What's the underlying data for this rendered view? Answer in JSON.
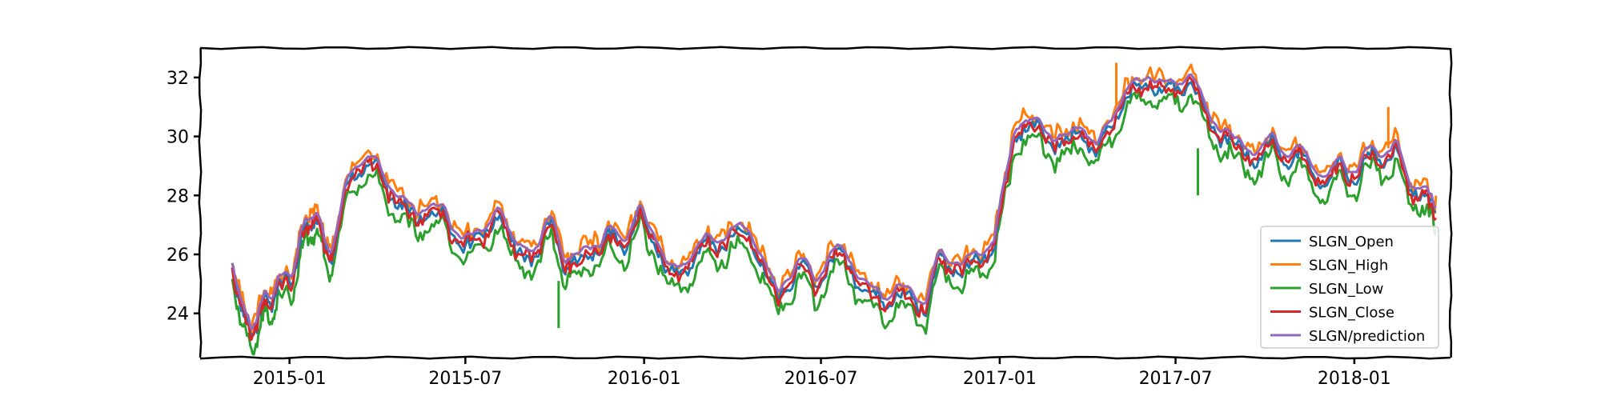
{
  "chart_data": {
    "type": "line",
    "title": "",
    "xlabel": "",
    "ylabel": "",
    "xlim": [
      "2014-10-01",
      "2018-04-10"
    ],
    "ylim": [
      22.5,
      33.0
    ],
    "x_ticks": [
      "2015-01",
      "2015-07",
      "2016-01",
      "2016-07",
      "2017-01",
      "2017-07",
      "2018-01"
    ],
    "y_ticks": [
      24,
      26,
      28,
      30,
      32
    ],
    "grid": false,
    "legend": {
      "placement": "lower-right",
      "entries": [
        "SLGN_Open",
        "SLGN_High",
        "SLGN_Low",
        "SLGN_Close",
        "SLGN/prediction"
      ]
    },
    "colors": {
      "SLGN_Open": "#1f77b4",
      "SLGN_High": "#ff7f0e",
      "SLGN_Low": "#2ca02c",
      "SLGN_Close": "#d62728",
      "SLGN/prediction": "#9467bd"
    },
    "base_series": {
      "x": [
        "2014-11-03",
        "2014-11-10",
        "2014-11-17",
        "2014-11-24",
        "2014-12-01",
        "2014-12-08",
        "2014-12-15",
        "2014-12-22",
        "2015-01-05",
        "2015-01-12",
        "2015-01-19",
        "2015-01-26",
        "2015-02-02",
        "2015-02-09",
        "2015-02-16",
        "2015-03-02",
        "2015-03-16",
        "2015-03-30",
        "2015-04-13",
        "2015-04-27",
        "2015-05-11",
        "2015-05-25",
        "2015-06-08",
        "2015-06-22",
        "2015-07-06",
        "2015-07-20",
        "2015-08-03",
        "2015-08-17",
        "2015-08-31",
        "2015-09-14",
        "2015-09-28",
        "2015-10-12",
        "2015-10-19",
        "2015-11-02",
        "2015-11-16",
        "2015-11-30",
        "2015-12-14",
        "2015-12-28",
        "2016-01-11",
        "2016-01-25",
        "2016-02-08",
        "2016-02-22",
        "2016-03-07",
        "2016-03-21",
        "2016-04-04",
        "2016-04-18",
        "2016-05-02",
        "2016-05-16",
        "2016-05-30",
        "2016-06-13",
        "2016-06-27",
        "2016-07-11",
        "2016-07-25",
        "2016-08-08",
        "2016-08-22",
        "2016-09-05",
        "2016-09-19",
        "2016-10-03",
        "2016-10-17",
        "2016-10-31",
        "2016-11-14",
        "2016-11-28",
        "2016-12-12",
        "2016-12-26",
        "2017-01-02",
        "2017-01-16",
        "2017-01-30",
        "2017-02-13",
        "2017-02-27",
        "2017-03-13",
        "2017-03-27",
        "2017-04-10",
        "2017-04-24",
        "2017-05-08",
        "2017-05-22",
        "2017-06-05",
        "2017-06-19",
        "2017-07-03",
        "2017-07-17",
        "2017-07-31",
        "2017-08-14",
        "2017-08-28",
        "2017-09-11",
        "2017-09-25",
        "2017-10-09",
        "2017-10-23",
        "2017-11-06",
        "2017-11-20",
        "2017-12-04",
        "2017-12-18",
        "2018-01-01",
        "2018-01-15",
        "2018-01-29",
        "2018-02-12",
        "2018-02-26",
        "2018-03-12",
        "2018-03-19",
        "2018-03-26"
      ],
      "close": [
        25.5,
        24.6,
        23.6,
        23.3,
        23.8,
        24.5,
        24.4,
        24.9,
        25.2,
        26.4,
        26.9,
        27.2,
        26.8,
        26.1,
        25.9,
        28.6,
        28.9,
        29.0,
        28.2,
        27.5,
        27.2,
        27.4,
        27.3,
        26.6,
        26.3,
        26.6,
        27.5,
        26.3,
        26.1,
        25.8,
        27.4,
        25.4,
        25.5,
        26.2,
        25.8,
        27.0,
        26.1,
        27.3,
        26.6,
        25.2,
        25.4,
        25.8,
        26.5,
        26.3,
        26.6,
        26.8,
        25.6,
        24.5,
        25.1,
        25.6,
        24.9,
        25.7,
        26.0,
        25.0,
        24.6,
        24.3,
        24.7,
        24.4,
        24.2,
        25.8,
        25.6,
        25.5,
        25.7,
        26.3,
        27.4,
        30.2,
        30.1,
        30.3,
        29.6,
        29.7,
        30.3,
        29.2,
        30.3,
        31.1,
        31.6,
        31.9,
        31.5,
        31.7,
        31.9,
        30.8,
        30.1,
        29.7,
        29.5,
        29.2,
        29.8,
        29.1,
        29.3,
        28.7,
        28.4,
        29.0,
        28.6,
        29.3,
        29.2,
        29.6,
        28.1,
        28.2,
        27.7,
        27.4
      ],
      "spread_high": 0.35,
      "spread_low": 0.45,
      "prediction_offset": 0.25
    },
    "notable_points": [
      {
        "series": "SLGN_Low",
        "x": "2015-10-05",
        "y": 23.5
      },
      {
        "series": "SLGN_Low",
        "x": "2017-07-24",
        "y": 28.0
      },
      {
        "series": "SLGN_High",
        "x": "2017-05-01",
        "y": 32.5
      },
      {
        "series": "SLGN_High",
        "x": "2018-02-05",
        "y": 31.0
      }
    ]
  }
}
